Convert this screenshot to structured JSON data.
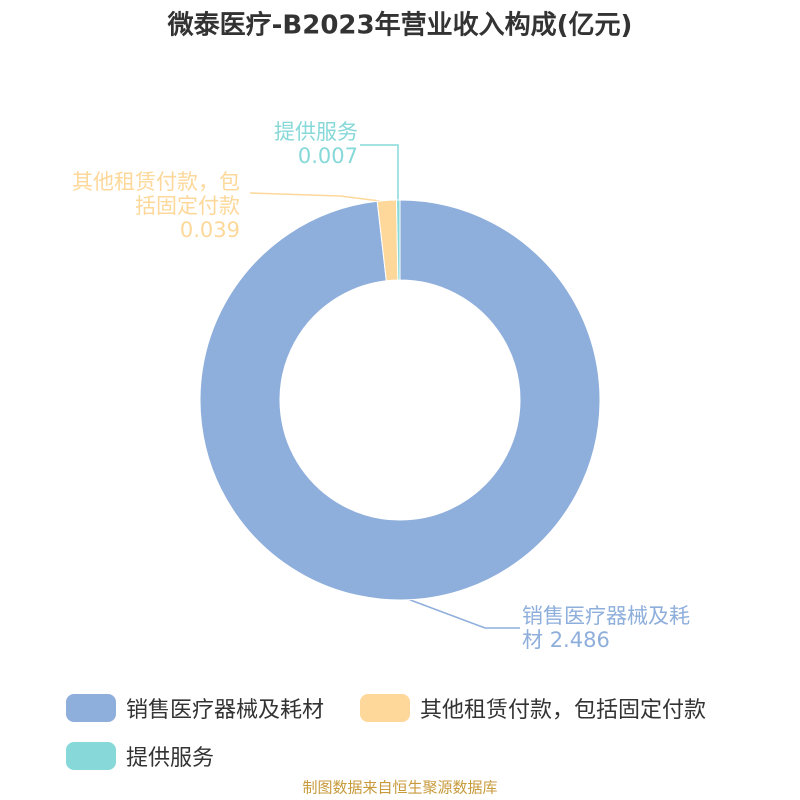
{
  "chart_data": {
    "type": "pie",
    "title": "微泰医疗-B2023年营业收入构成(亿元)",
    "categories": [
      "销售医疗器械及耗材",
      "其他租赁付款，包括固定付款",
      "提供服务"
    ],
    "values": [
      2.486,
      0.039,
      0.007
    ],
    "colors": [
      "#8eaedb",
      "#fdd89a",
      "#87d8d8"
    ],
    "source": "制图数据来自恒生聚源数据库"
  }
}
